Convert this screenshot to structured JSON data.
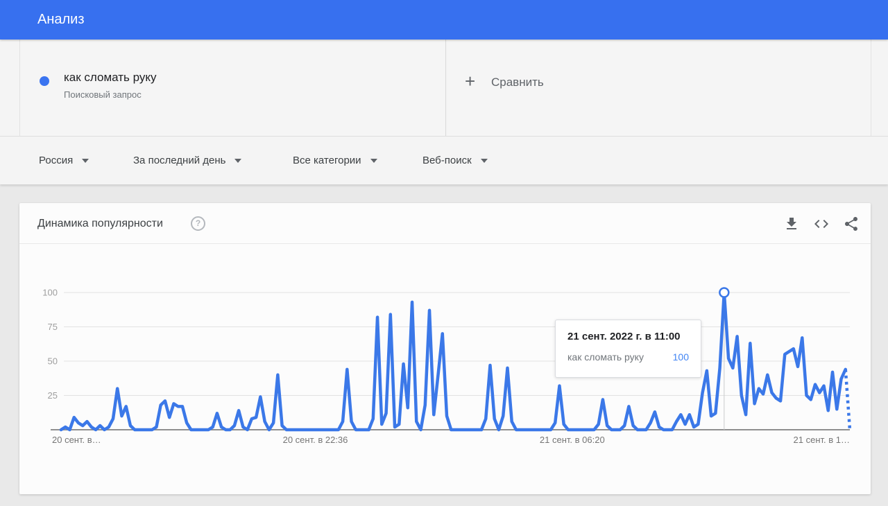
{
  "appbar": {
    "title": "Анализ"
  },
  "term_card": {
    "term": "как сломать руку",
    "type_label": "Поисковый запрос",
    "dot_color": "#3a74f0"
  },
  "compare": {
    "plus_label": "+",
    "label": "Сравнить"
  },
  "filters": [
    {
      "label": "Россия"
    },
    {
      "label": "За последний день"
    },
    {
      "label": "Все категории"
    },
    {
      "label": "Веб-поиск"
    }
  ],
  "widget": {
    "title": "Динамика популярности",
    "help_glyph": "?",
    "action_icons": [
      "download-icon",
      "embed-icon",
      "share-icon"
    ]
  },
  "tooltip": {
    "date": "21 сент. 2022 г. в 11:00",
    "term": "как сломать руку",
    "value": "100",
    "value_color": "#4285f4"
  },
  "colors": {
    "appbar_blue": "#3770ef",
    "line_blue": "#3b78e8",
    "grid": "#e2e2e2",
    "axis": "#8f8f8f",
    "axis_label": "#9e9e9e",
    "x_label": "#757575",
    "crosshair": "#c9cbcd"
  },
  "chart_data": {
    "type": "line",
    "title": "Динамика популярности",
    "xlabel": "",
    "ylabel": "",
    "ylim": [
      0,
      100
    ],
    "grid": true,
    "legend": false,
    "yticks": [
      25,
      50,
      75,
      100
    ],
    "xticks": [
      {
        "label": "20 сент. в…",
        "pos": 0,
        "anchor": "start"
      },
      {
        "label": "20 сент. в 22:36",
        "pos": 0.33,
        "anchor": "middle"
      },
      {
        "label": "21 сент. в 06:20",
        "pos": 0.652,
        "anchor": "middle"
      },
      {
        "label": "21 сент. в 1…",
        "pos": 1,
        "anchor": "end"
      }
    ],
    "series": [
      {
        "name": "как сломать руку",
        "color": "#3b78e8",
        "dotted_tail_segments": 1,
        "values": [
          0,
          2,
          0,
          9,
          5,
          3,
          6,
          2,
          0,
          3,
          0,
          2,
          8,
          30,
          10,
          17,
          3,
          0,
          0,
          0,
          0,
          0,
          2,
          18,
          21,
          9,
          19,
          17,
          17,
          5,
          0,
          0,
          0,
          0,
          0,
          2,
          12,
          2,
          0,
          0,
          3,
          14,
          2,
          0,
          8,
          9,
          24,
          6,
          0,
          5,
          40,
          3,
          0,
          0,
          0,
          0,
          0,
          0,
          0,
          0,
          0,
          0,
          0,
          0,
          0,
          6,
          44,
          6,
          0,
          0,
          0,
          0,
          8,
          82,
          4,
          12,
          84,
          2,
          4,
          48,
          16,
          93,
          6,
          0,
          18,
          87,
          11,
          40,
          70,
          10,
          0,
          0,
          0,
          0,
          0,
          0,
          0,
          0,
          8,
          47,
          8,
          0,
          10,
          45,
          6,
          0,
          0,
          0,
          0,
          0,
          0,
          0,
          0,
          0,
          5,
          32,
          4,
          0,
          0,
          0,
          0,
          0,
          0,
          0,
          4,
          22,
          3,
          0,
          0,
          0,
          3,
          17,
          3,
          0,
          0,
          0,
          5,
          13,
          2,
          0,
          0,
          0,
          6,
          11,
          4,
          11,
          2,
          4,
          27,
          43,
          10,
          12,
          45,
          100,
          52,
          45,
          68,
          25,
          11,
          63,
          19,
          30,
          26,
          40,
          27,
          23,
          21,
          55,
          57,
          59,
          46,
          67,
          25,
          22,
          33,
          27,
          32,
          14,
          42,
          15,
          37,
          44,
          0
        ]
      }
    ],
    "highlight": {
      "index": 153,
      "value": 100,
      "date": "21 сент. 2022 г. в 11:00"
    }
  }
}
